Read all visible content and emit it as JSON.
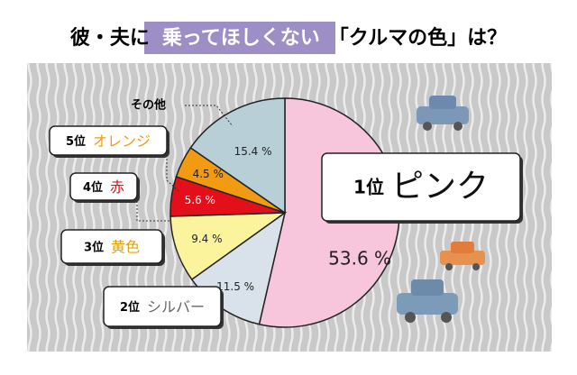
{
  "chart_data": {
    "type": "pie",
    "title": [
      "彼・夫に",
      "乗ってほしくない",
      "「クルマの色」は？"
    ],
    "ranks": [
      "1位",
      "2位",
      "3位",
      "4位",
      "5位",
      null
    ],
    "categories": [
      "ピンク",
      "シルバー",
      "黄色",
      "赤",
      "オレンジ",
      "その他"
    ],
    "values": [
      53.6,
      11.5,
      9.4,
      5.6,
      4.5,
      15.4
    ],
    "value_labels": [
      "53.6 %",
      "11.5 %",
      "9.4 %",
      "5.6 %",
      "4.5 %",
      "15.4 %"
    ],
    "colors": [
      "#f7c5dc",
      "#d9e2ea",
      "#fcf49c",
      "#e3101c",
      "#f29a12",
      "#b9cfd8"
    ]
  }
}
